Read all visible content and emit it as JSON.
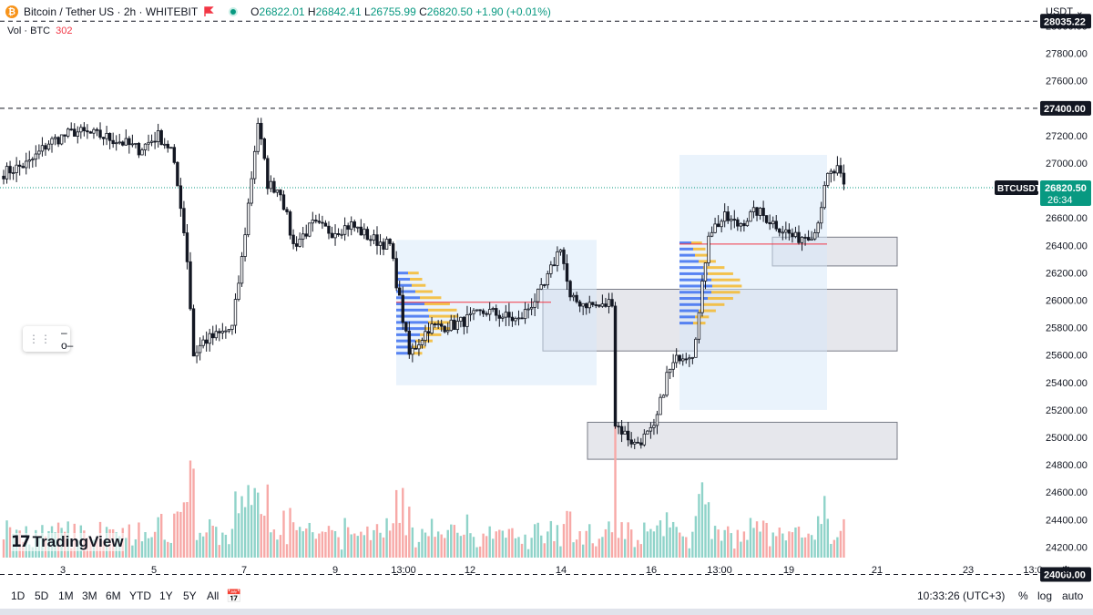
{
  "header": {
    "title": "Bitcoin / Tether US · 2h · WHITEBIT",
    "ohlc": {
      "o_label": "O",
      "o": "26822.01",
      "h_label": "H",
      "h": "26842.41",
      "l_label": "L",
      "l": "26755.99",
      "c_label": "C",
      "c": "26820.50",
      "change": "+1.90 (+0.01%)"
    },
    "volume": {
      "label": "Vol · BTC",
      "value": "302"
    },
    "currency": "USDT ⌄"
  },
  "watermark": "TradingView",
  "timeframes": [
    "1D",
    "5D",
    "1M",
    "3M",
    "6M",
    "YTD",
    "1Y",
    "5Y",
    "All"
  ],
  "status": {
    "time": "10:33:26 (UTC+3)",
    "percent": "%",
    "log": "log",
    "auto": "auto"
  },
  "colors": {
    "up": "#089981",
    "down": "#f23645",
    "up_vol": "#8fd3c9",
    "down_vol": "#f7a9a7",
    "profile_blue": "#3d6ff0",
    "profile_yellow": "#f5b82e",
    "zone_fill": "#d1d4dc",
    "range_fill": "#d6e8fa"
  },
  "chart_data": {
    "type": "candlestick",
    "symbol": "BTCUSDT",
    "price_label": "26820.50",
    "countdown": "26:34",
    "y_ticks": [
      24000,
      24200,
      24400,
      24600,
      24800,
      25000,
      25200,
      25400,
      25600,
      25800,
      26000,
      26200,
      26400,
      26600,
      26800,
      27000,
      27200,
      27400,
      27600,
      27800,
      28000
    ],
    "ylim": [
      23990,
      28110
    ],
    "x_ticks": [
      "3",
      "5",
      "7",
      "9",
      "13:00",
      "12",
      "14",
      "16",
      "13:00",
      "19",
      "21",
      "23",
      "13:0"
    ],
    "horizontal_levels": [
      {
        "price": 28035.22,
        "label": "28035.22"
      },
      {
        "price": 27400.0,
        "label": "27400.00"
      },
      {
        "price": 24000.0,
        "label": "24000.00"
      }
    ],
    "current_price": 26820.5,
    "zones": [
      {
        "name": "zone-26400",
        "from": 26250,
        "to": 26460
      },
      {
        "name": "zone-25800",
        "from": 25630,
        "to": 26080
      },
      {
        "name": "zone-25000",
        "from": 24840,
        "to": 25110
      }
    ],
    "anchors": [
      {
        "index": 0,
        "price": 26930
      },
      {
        "index": 8,
        "price": 27000
      },
      {
        "index": 14,
        "price": 27150
      },
      {
        "index": 22,
        "price": 27230
      },
      {
        "index": 30,
        "price": 27200
      },
      {
        "index": 36,
        "price": 27160
      },
      {
        "index": 42,
        "price": 27100
      },
      {
        "index": 48,
        "price": 27200
      },
      {
        "index": 52,
        "price": 27100
      },
      {
        "index": 55,
        "price": 26700
      },
      {
        "index": 57,
        "price": 26300
      },
      {
        "index": 59,
        "price": 25600
      },
      {
        "index": 62,
        "price": 25700
      },
      {
        "index": 67,
        "price": 25750
      },
      {
        "index": 71,
        "price": 25800
      },
      {
        "index": 74,
        "price": 26300
      },
      {
        "index": 77,
        "price": 26900
      },
      {
        "index": 79,
        "price": 27300
      },
      {
        "index": 82,
        "price": 26850
      },
      {
        "index": 86,
        "price": 26800
      },
      {
        "index": 90,
        "price": 26400
      },
      {
        "index": 96,
        "price": 26550
      },
      {
        "index": 102,
        "price": 26500
      },
      {
        "index": 108,
        "price": 26550
      },
      {
        "index": 114,
        "price": 26450
      },
      {
        "index": 120,
        "price": 26400
      },
      {
        "index": 126,
        "price": 25600
      },
      {
        "index": 132,
        "price": 25800
      },
      {
        "index": 140,
        "price": 25820
      },
      {
        "index": 150,
        "price": 25920
      },
      {
        "index": 160,
        "price": 25850
      },
      {
        "index": 168,
        "price": 26100
      },
      {
        "index": 173,
        "price": 26400
      },
      {
        "index": 176,
        "price": 26000
      },
      {
        "index": 186,
        "price": 25950
      },
      {
        "index": 189,
        "price": 26000
      },
      {
        "index": 190,
        "price": 25100
      },
      {
        "index": 196,
        "price": 24950
      },
      {
        "index": 202,
        "price": 25050
      },
      {
        "index": 206,
        "price": 25450
      },
      {
        "index": 210,
        "price": 25600
      },
      {
        "index": 214,
        "price": 25620
      },
      {
        "index": 216,
        "price": 25900
      },
      {
        "index": 219,
        "price": 26500
      },
      {
        "index": 224,
        "price": 26600
      },
      {
        "index": 228,
        "price": 26550
      },
      {
        "index": 234,
        "price": 26650
      },
      {
        "index": 240,
        "price": 26550
      },
      {
        "index": 246,
        "price": 26450
      },
      {
        "index": 252,
        "price": 26500
      },
      {
        "index": 256,
        "price": 26900
      },
      {
        "index": 259,
        "price": 26950
      },
      {
        "index": 261,
        "price": 26820
      }
    ]
  }
}
